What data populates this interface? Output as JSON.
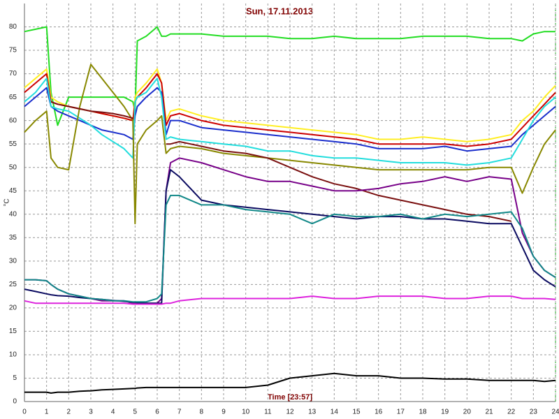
{
  "chart_data": {
    "type": "line",
    "title": "Sun, 17.11.2013",
    "x_label": "Time [23:57]",
    "y_label": "°C",
    "x": [
      0,
      0.5,
      1,
      1.2,
      1.5,
      2,
      2.5,
      3,
      3.5,
      4,
      4.5,
      4.9,
      5,
      5.1,
      5.5,
      6,
      6.2,
      6.4,
      6.6,
      7,
      8,
      9,
      10,
      11,
      12,
      13,
      14,
      15,
      16,
      17,
      18,
      19,
      20,
      21,
      22,
      22.5,
      23,
      23.5,
      24
    ],
    "xlim": [
      0,
      24
    ],
    "xticks": [
      0,
      1,
      2,
      3,
      4,
      5,
      6,
      7,
      8,
      9,
      10,
      11,
      12,
      13,
      14,
      15,
      16,
      17,
      18,
      19,
      20,
      21,
      22,
      23,
      24
    ],
    "ylim": [
      0,
      85
    ],
    "yticks": [
      0,
      5,
      10,
      15,
      20,
      25,
      30,
      35,
      40,
      45,
      50,
      55,
      60,
      65,
      70,
      75,
      80
    ],
    "grid": true,
    "series": [
      {
        "color": "#22dd22",
        "values": [
          79,
          79.5,
          80,
          66,
          59,
          65,
          65,
          65,
          65,
          65,
          65,
          64,
          62,
          77,
          78,
          80,
          78,
          78,
          78.5,
          78.5,
          78.5,
          78,
          78,
          78,
          77.5,
          77.5,
          78,
          77.5,
          77.5,
          77.5,
          78,
          78,
          78,
          77.5,
          77.5,
          77,
          78.5,
          79,
          79
        ]
      },
      {
        "color": "#ffee22",
        "values": [
          67,
          69,
          71,
          65,
          64,
          63,
          62.5,
          62,
          61.5,
          61,
          60.5,
          60,
          65,
          66,
          68,
          71,
          68,
          60,
          62,
          62.5,
          61,
          60,
          59.5,
          59,
          58.5,
          58,
          57.5,
          57,
          56,
          56,
          56.5,
          56,
          55.5,
          56,
          57,
          60,
          62,
          65,
          67.5
        ]
      },
      {
        "color": "#cc0000",
        "values": [
          66,
          68,
          70,
          64,
          63.5,
          63,
          62.5,
          62,
          61.5,
          61,
          60.5,
          60,
          64,
          65,
          67,
          70,
          68,
          59,
          61,
          61.5,
          60,
          59,
          58.5,
          58,
          57.5,
          57,
          56.5,
          56,
          55,
          55,
          55,
          55,
          54.5,
          55,
          56,
          58.5,
          61,
          63.5,
          66
        ]
      },
      {
        "color": "#1a2ecc",
        "values": [
          63,
          65,
          67,
          63,
          62,
          61,
          60,
          59,
          58,
          57.5,
          57,
          56,
          61,
          63,
          65,
          67,
          66,
          57,
          60,
          60,
          58.5,
          58,
          57.5,
          57,
          56.5,
          56,
          55.5,
          55,
          54,
          54,
          54,
          54.5,
          53.5,
          54,
          54.5,
          57,
          59,
          61,
          63
        ]
      },
      {
        "color": "#22dddd",
        "values": [
          64,
          66,
          69,
          63,
          62.5,
          62,
          60.5,
          59,
          57,
          55.5,
          54,
          52,
          64,
          65,
          66,
          69,
          65,
          56,
          56.5,
          56,
          55.5,
          55,
          54.5,
          53.5,
          53.5,
          52.5,
          52,
          52,
          51.5,
          51,
          51,
          51,
          50.5,
          51,
          52,
          56,
          60,
          63,
          65
        ]
      },
      {
        "color": "#888800",
        "values": [
          57.5,
          60,
          62,
          52,
          50,
          49.5,
          63,
          72,
          69,
          66,
          63,
          60,
          38,
          55,
          58,
          60,
          61,
          53,
          54,
          54.5,
          54,
          53,
          52.5,
          52,
          51.5,
          51,
          50.5,
          50,
          49.5,
          49.5,
          49.5,
          49.5,
          49.5,
          50,
          50,
          44.5,
          50,
          55,
          58
        ]
      },
      {
        "color": "#7a1010",
        "values": [
          null,
          null,
          null,
          64,
          63.5,
          63,
          62.5,
          62,
          61.8,
          61.5,
          61,
          60.5,
          null,
          null,
          null,
          null,
          null,
          55,
          55,
          55.5,
          54.5,
          53.5,
          53,
          52,
          50,
          48,
          46.5,
          45.5,
          44,
          43,
          42,
          41,
          40,
          39.5,
          38.5,
          null,
          null,
          null,
          null
        ]
      },
      {
        "color": "#770088",
        "values": [
          26,
          26,
          25.8,
          25,
          24,
          23,
          22.5,
          22,
          21.5,
          21.5,
          21.5,
          21,
          21,
          21,
          21,
          21,
          22,
          45,
          51,
          52,
          51,
          49.5,
          48,
          47,
          47,
          46,
          45,
          45,
          45.5,
          46.5,
          47,
          48,
          47,
          48,
          47.5,
          36,
          31,
          28,
          26.5
        ]
      },
      {
        "color": "#0a0a60",
        "values": [
          24,
          23.5,
          23,
          22.8,
          22.6,
          22.5,
          22.2,
          22,
          21.8,
          21.6,
          21.4,
          21.2,
          21.2,
          21.1,
          21,
          21,
          21,
          45,
          49.5,
          48,
          43,
          42,
          41.5,
          41,
          40.5,
          40,
          39.5,
          39,
          39.5,
          39.5,
          39,
          39,
          38.5,
          38,
          38,
          33,
          28,
          26,
          24.5
        ]
      },
      {
        "color": "#118888",
        "values": [
          26,
          26,
          25.8,
          25,
          24,
          23,
          22.5,
          22,
          21.8,
          21.5,
          21.5,
          21.3,
          21.3,
          21.3,
          21.3,
          22,
          23,
          42,
          44,
          44,
          42,
          42,
          41,
          40.5,
          40,
          38,
          40,
          39.5,
          39.5,
          40,
          39,
          40,
          39.5,
          40,
          40.5,
          37,
          31,
          28,
          26.5
        ]
      },
      {
        "color": "#dd22dd",
        "values": [
          21.5,
          21,
          21,
          21,
          21,
          21,
          21,
          21,
          21,
          21,
          21,
          20.8,
          20.8,
          20.8,
          20.8,
          20.8,
          20.8,
          21,
          21,
          21.5,
          22,
          22,
          22,
          22,
          22,
          22.5,
          22,
          22,
          22.5,
          22.5,
          22.5,
          22,
          22,
          22.5,
          22.5,
          22,
          22,
          22,
          21.8
        ]
      },
      {
        "color": "#000000",
        "values": [
          2,
          2,
          2,
          1.8,
          2,
          2,
          2.2,
          2.3,
          2.5,
          2.6,
          2.7,
          2.8,
          2.8,
          2.9,
          3,
          3,
          3,
          3,
          3,
          3,
          3,
          3,
          3,
          3.5,
          5,
          5.5,
          6,
          5.5,
          5.5,
          5,
          5,
          4.8,
          4.8,
          4.5,
          4.5,
          4.5,
          4.5,
          4.3,
          4.5
        ]
      }
    ]
  }
}
